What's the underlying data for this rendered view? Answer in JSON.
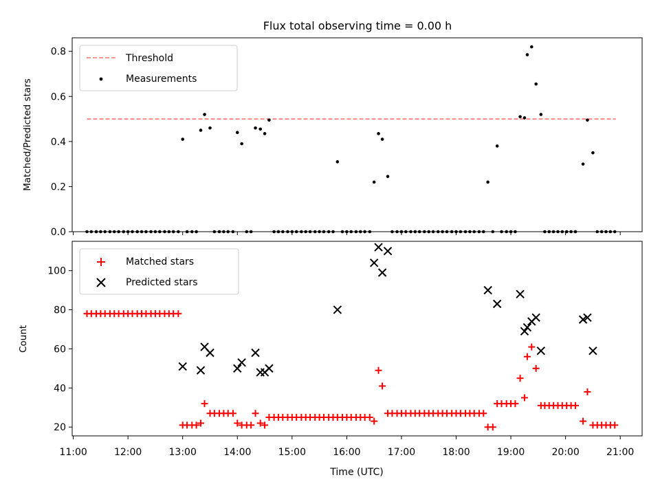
{
  "title": "Flux total observing time = 0.00 h",
  "xlabel": "Time (UTC)",
  "colors": {
    "threshold": "#ff7373",
    "measurements": "#000000",
    "matched": "#ff0000",
    "predicted": "#000000"
  },
  "chart_data": [
    {
      "type": "scatter",
      "title": "Flux total observing time = 0.00 h",
      "ylabel": "Matched/Predicted stars",
      "xlim": [
        10.98,
        21.4
      ],
      "ylim": [
        0,
        0.86
      ],
      "yticks": [
        0.0,
        0.2,
        0.4,
        0.6,
        0.8
      ],
      "ytick_labels": [
        "0.0",
        "0.2",
        "0.4",
        "0.6",
        "0.8"
      ],
      "legend_position": "upper-left",
      "threshold": {
        "name": "Threshold",
        "value": 0.5,
        "x_range": [
          11.25,
          20.92
        ],
        "style": "dashed"
      },
      "series": [
        {
          "name": "Measurements",
          "points": [
            [
              11.25,
              0
            ],
            [
              11.33,
              0
            ],
            [
              11.42,
              0
            ],
            [
              11.5,
              0
            ],
            [
              11.58,
              0
            ],
            [
              11.67,
              0
            ],
            [
              11.75,
              0
            ],
            [
              11.83,
              0
            ],
            [
              11.92,
              0
            ],
            [
              12.0,
              0
            ],
            [
              12.08,
              0
            ],
            [
              12.17,
              0
            ],
            [
              12.25,
              0
            ],
            [
              12.33,
              0
            ],
            [
              12.42,
              0
            ],
            [
              12.5,
              0
            ],
            [
              12.58,
              0
            ],
            [
              12.67,
              0
            ],
            [
              12.75,
              0
            ],
            [
              12.83,
              0
            ],
            [
              12.92,
              0
            ],
            [
              13.0,
              0.41
            ],
            [
              13.08,
              0
            ],
            [
              13.17,
              0
            ],
            [
              13.25,
              0
            ],
            [
              13.33,
              0.45
            ],
            [
              13.4,
              0.52
            ],
            [
              13.5,
              0.46
            ],
            [
              13.58,
              0
            ],
            [
              13.67,
              0
            ],
            [
              13.75,
              0
            ],
            [
              13.83,
              0
            ],
            [
              13.92,
              0
            ],
            [
              14.0,
              0.44
            ],
            [
              14.08,
              0.39
            ],
            [
              14.17,
              0
            ],
            [
              14.25,
              0
            ],
            [
              14.33,
              0.46
            ],
            [
              14.42,
              0.455
            ],
            [
              14.5,
              0.435
            ],
            [
              14.58,
              0.495
            ],
            [
              14.67,
              0
            ],
            [
              14.75,
              0
            ],
            [
              14.83,
              0
            ],
            [
              14.92,
              0
            ],
            [
              15.0,
              0
            ],
            [
              15.08,
              0
            ],
            [
              15.17,
              0
            ],
            [
              15.25,
              0
            ],
            [
              15.33,
              0
            ],
            [
              15.42,
              0
            ],
            [
              15.5,
              0
            ],
            [
              15.58,
              0
            ],
            [
              15.67,
              0
            ],
            [
              15.75,
              0
            ],
            [
              15.83,
              0.31
            ],
            [
              15.92,
              0
            ],
            [
              16.0,
              0
            ],
            [
              16.08,
              0
            ],
            [
              16.17,
              0
            ],
            [
              16.25,
              0
            ],
            [
              16.33,
              0
            ],
            [
              16.42,
              0
            ],
            [
              16.5,
              0.22
            ],
            [
              16.58,
              0.435
            ],
            [
              16.65,
              0.41
            ],
            [
              16.75,
              0.245
            ],
            [
              16.83,
              0
            ],
            [
              16.92,
              0
            ],
            [
              17.0,
              0
            ],
            [
              17.08,
              0
            ],
            [
              17.17,
              0
            ],
            [
              17.25,
              0
            ],
            [
              17.33,
              0
            ],
            [
              17.42,
              0
            ],
            [
              17.5,
              0
            ],
            [
              17.58,
              0
            ],
            [
              17.67,
              0
            ],
            [
              17.75,
              0
            ],
            [
              17.83,
              0
            ],
            [
              17.92,
              0
            ],
            [
              18.0,
              0
            ],
            [
              18.08,
              0
            ],
            [
              18.17,
              0
            ],
            [
              18.25,
              0
            ],
            [
              18.33,
              0
            ],
            [
              18.42,
              0
            ],
            [
              18.5,
              0
            ],
            [
              18.58,
              0.22
            ],
            [
              18.67,
              0
            ],
            [
              18.75,
              0.38
            ],
            [
              18.83,
              0
            ],
            [
              18.92,
              0
            ],
            [
              19.0,
              0
            ],
            [
              19.08,
              0
            ],
            [
              19.17,
              0.51
            ],
            [
              19.25,
              0.505
            ],
            [
              19.3,
              0.785
            ],
            [
              19.38,
              0.82
            ],
            [
              19.46,
              0.655
            ],
            [
              19.55,
              0.52
            ],
            [
              19.62,
              0
            ],
            [
              19.7,
              0
            ],
            [
              19.78,
              0
            ],
            [
              19.86,
              0
            ],
            [
              19.94,
              0
            ],
            [
              20.02,
              0
            ],
            [
              20.1,
              0
            ],
            [
              20.18,
              0
            ],
            [
              20.32,
              0.3
            ],
            [
              20.4,
              0.495
            ],
            [
              20.5,
              0.35
            ],
            [
              20.58,
              0
            ],
            [
              20.66,
              0
            ],
            [
              20.74,
              0
            ],
            [
              20.82,
              0
            ],
            [
              20.9,
              0
            ]
          ]
        }
      ]
    },
    {
      "type": "scatter",
      "xlabel": "Time (UTC)",
      "ylabel": "Count",
      "xlim": [
        10.98,
        21.4
      ],
      "ylim": [
        15.5,
        115
      ],
      "yticks": [
        20,
        40,
        60,
        80,
        100
      ],
      "ytick_labels": [
        "20",
        "40",
        "60",
        "80",
        "100"
      ],
      "xticks": [
        11,
        12,
        13,
        14,
        15,
        16,
        17,
        18,
        19,
        20,
        21
      ],
      "xtick_labels": [
        "11:00",
        "12:00",
        "13:00",
        "14:00",
        "15:00",
        "16:00",
        "17:00",
        "18:00",
        "19:00",
        "20:00",
        "21:00"
      ],
      "legend_position": "upper-left",
      "series": [
        {
          "name": "Matched stars",
          "marker": "plus",
          "points": [
            [
              11.25,
              78
            ],
            [
              11.33,
              78
            ],
            [
              11.42,
              78
            ],
            [
              11.5,
              78
            ],
            [
              11.58,
              78
            ],
            [
              11.67,
              78
            ],
            [
              11.75,
              78
            ],
            [
              11.83,
              78
            ],
            [
              11.92,
              78
            ],
            [
              12.0,
              78
            ],
            [
              12.08,
              78
            ],
            [
              12.17,
              78
            ],
            [
              12.25,
              78
            ],
            [
              12.33,
              78
            ],
            [
              12.42,
              78
            ],
            [
              12.5,
              78
            ],
            [
              12.58,
              78
            ],
            [
              12.67,
              78
            ],
            [
              12.75,
              78
            ],
            [
              12.83,
              78
            ],
            [
              12.92,
              78
            ],
            [
              13.0,
              21
            ],
            [
              13.08,
              21
            ],
            [
              13.17,
              21
            ],
            [
              13.25,
              21
            ],
            [
              13.33,
              22
            ],
            [
              13.4,
              32
            ],
            [
              13.5,
              27
            ],
            [
              13.58,
              27
            ],
            [
              13.67,
              27
            ],
            [
              13.75,
              27
            ],
            [
              13.83,
              27
            ],
            [
              13.92,
              27
            ],
            [
              14.0,
              22
            ],
            [
              14.08,
              21
            ],
            [
              14.17,
              21
            ],
            [
              14.25,
              21
            ],
            [
              14.33,
              27
            ],
            [
              14.42,
              22
            ],
            [
              14.5,
              21
            ],
            [
              14.58,
              25
            ],
            [
              14.67,
              25
            ],
            [
              14.75,
              25
            ],
            [
              14.83,
              25
            ],
            [
              14.92,
              25
            ],
            [
              15.0,
              25
            ],
            [
              15.08,
              25
            ],
            [
              15.17,
              25
            ],
            [
              15.25,
              25
            ],
            [
              15.33,
              25
            ],
            [
              15.42,
              25
            ],
            [
              15.5,
              25
            ],
            [
              15.58,
              25
            ],
            [
              15.67,
              25
            ],
            [
              15.75,
              25
            ],
            [
              15.83,
              25
            ],
            [
              15.92,
              25
            ],
            [
              16.0,
              25
            ],
            [
              16.08,
              25
            ],
            [
              16.17,
              25
            ],
            [
              16.25,
              25
            ],
            [
              16.33,
              25
            ],
            [
              16.42,
              25
            ],
            [
              16.5,
              23
            ],
            [
              16.58,
              49
            ],
            [
              16.65,
              41
            ],
            [
              16.75,
              27
            ],
            [
              16.83,
              27
            ],
            [
              16.92,
              27
            ],
            [
              17.0,
              27
            ],
            [
              17.08,
              27
            ],
            [
              17.17,
              27
            ],
            [
              17.25,
              27
            ],
            [
              17.33,
              27
            ],
            [
              17.42,
              27
            ],
            [
              17.5,
              27
            ],
            [
              17.58,
              27
            ],
            [
              17.67,
              27
            ],
            [
              17.75,
              27
            ],
            [
              17.83,
              27
            ],
            [
              17.92,
              27
            ],
            [
              18.0,
              27
            ],
            [
              18.08,
              27
            ],
            [
              18.17,
              27
            ],
            [
              18.25,
              27
            ],
            [
              18.33,
              27
            ],
            [
              18.42,
              27
            ],
            [
              18.5,
              27
            ],
            [
              18.58,
              20
            ],
            [
              18.67,
              20
            ],
            [
              18.75,
              32
            ],
            [
              18.83,
              32
            ],
            [
              18.92,
              32
            ],
            [
              19.0,
              32
            ],
            [
              19.08,
              32
            ],
            [
              19.17,
              45
            ],
            [
              19.25,
              35
            ],
            [
              19.3,
              56
            ],
            [
              19.38,
              61
            ],
            [
              19.46,
              50
            ],
            [
              19.55,
              31
            ],
            [
              19.62,
              31
            ],
            [
              19.7,
              31
            ],
            [
              19.78,
              31
            ],
            [
              19.86,
              31
            ],
            [
              19.94,
              31
            ],
            [
              20.02,
              31
            ],
            [
              20.1,
              31
            ],
            [
              20.18,
              31
            ],
            [
              20.32,
              23
            ],
            [
              20.4,
              38
            ],
            [
              20.5,
              21
            ],
            [
              20.58,
              21
            ],
            [
              20.66,
              21
            ],
            [
              20.74,
              21
            ],
            [
              20.82,
              21
            ],
            [
              20.9,
              21
            ]
          ]
        },
        {
          "name": "Predicted stars",
          "marker": "x",
          "points": [
            [
              13.0,
              51
            ],
            [
              13.33,
              49
            ],
            [
              13.4,
              61
            ],
            [
              13.5,
              58
            ],
            [
              14.0,
              50
            ],
            [
              14.08,
              53
            ],
            [
              14.33,
              58
            ],
            [
              14.42,
              48
            ],
            [
              14.5,
              48
            ],
            [
              14.58,
              50
            ],
            [
              15.83,
              80
            ],
            [
              16.5,
              104
            ],
            [
              16.58,
              112
            ],
            [
              16.65,
              99
            ],
            [
              16.75,
              110
            ],
            [
              18.58,
              90
            ],
            [
              18.75,
              83
            ],
            [
              19.17,
              88
            ],
            [
              19.25,
              69
            ],
            [
              19.3,
              71
            ],
            [
              19.38,
              74
            ],
            [
              19.46,
              76
            ],
            [
              19.55,
              59
            ],
            [
              20.32,
              75
            ],
            [
              20.4,
              76
            ],
            [
              20.5,
              59
            ]
          ]
        }
      ]
    }
  ]
}
